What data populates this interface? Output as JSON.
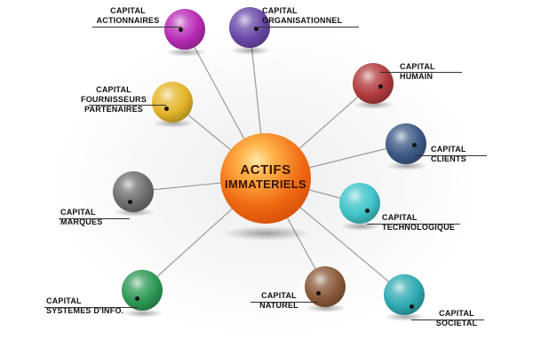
{
  "center": {
    "line1": "ACTIFS",
    "line2": "IMMATERIELS"
  },
  "nodes": [
    {
      "id": "actionnaires",
      "lines": [
        "CAPITAL",
        "ACTIONNAIRES"
      ],
      "color": "#b82bb5"
    },
    {
      "id": "organisationnel",
      "lines": [
        "CAPITAL",
        "ORGANISATIONNEL"
      ],
      "color": "#6b49a8"
    },
    {
      "id": "humain",
      "lines": [
        "CAPITAL",
        "HUMAIN"
      ],
      "color": "#b23b3e"
    },
    {
      "id": "fournisseurs",
      "lines": [
        "CAPITAL",
        "FOURNISSEURS",
        "PARTENAIRES"
      ],
      "color": "#e4b52a"
    },
    {
      "id": "clients",
      "lines": [
        "CAPITAL",
        "CLIENTS"
      ],
      "color": "#3d5a86"
    },
    {
      "id": "marques",
      "lines": [
        "CAPITAL",
        "MARQUES"
      ],
      "color": "#6f6f6f"
    },
    {
      "id": "technologique",
      "lines": [
        "CAPITAL",
        "TECHNOLOGIQUE"
      ],
      "color": "#3fc4c9"
    },
    {
      "id": "systemes",
      "lines": [
        "CAPITAL",
        "SYSTEMES D'INFO."
      ],
      "color": "#2e9a55"
    },
    {
      "id": "naturel",
      "lines": [
        "CAPITAL",
        "NATUREL"
      ],
      "color": "#8a5a3a"
    },
    {
      "id": "societal",
      "lines": [
        "CAPITAL",
        "SOCIETAL"
      ],
      "color": "#2fa9b2"
    }
  ],
  "center_color": "#f06a12"
}
